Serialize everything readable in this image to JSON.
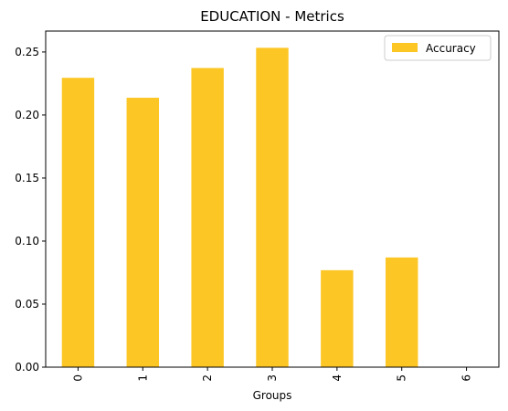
{
  "chart_data": {
    "type": "bar",
    "title": "EDUCATION - Metrics",
    "xlabel": "Groups",
    "ylabel": "",
    "categories": [
      "0",
      "1",
      "2",
      "3",
      "4",
      "5",
      "6"
    ],
    "series": [
      {
        "name": "Accuracy",
        "values": [
          0.2295,
          0.2137,
          0.2373,
          0.2533,
          0.0769,
          0.087,
          0.0
        ]
      }
    ],
    "ylim": [
      0,
      0.2666
    ],
    "yticks": [
      "0.00",
      "0.05",
      "0.10",
      "0.15",
      "0.20",
      "0.25"
    ],
    "ytick_values": [
      0,
      0.05,
      0.1,
      0.15,
      0.2,
      0.25
    ],
    "grid": false,
    "legend_position": "top-right",
    "colors": {
      "bar": "#fcc624",
      "axis": "#000000"
    }
  }
}
